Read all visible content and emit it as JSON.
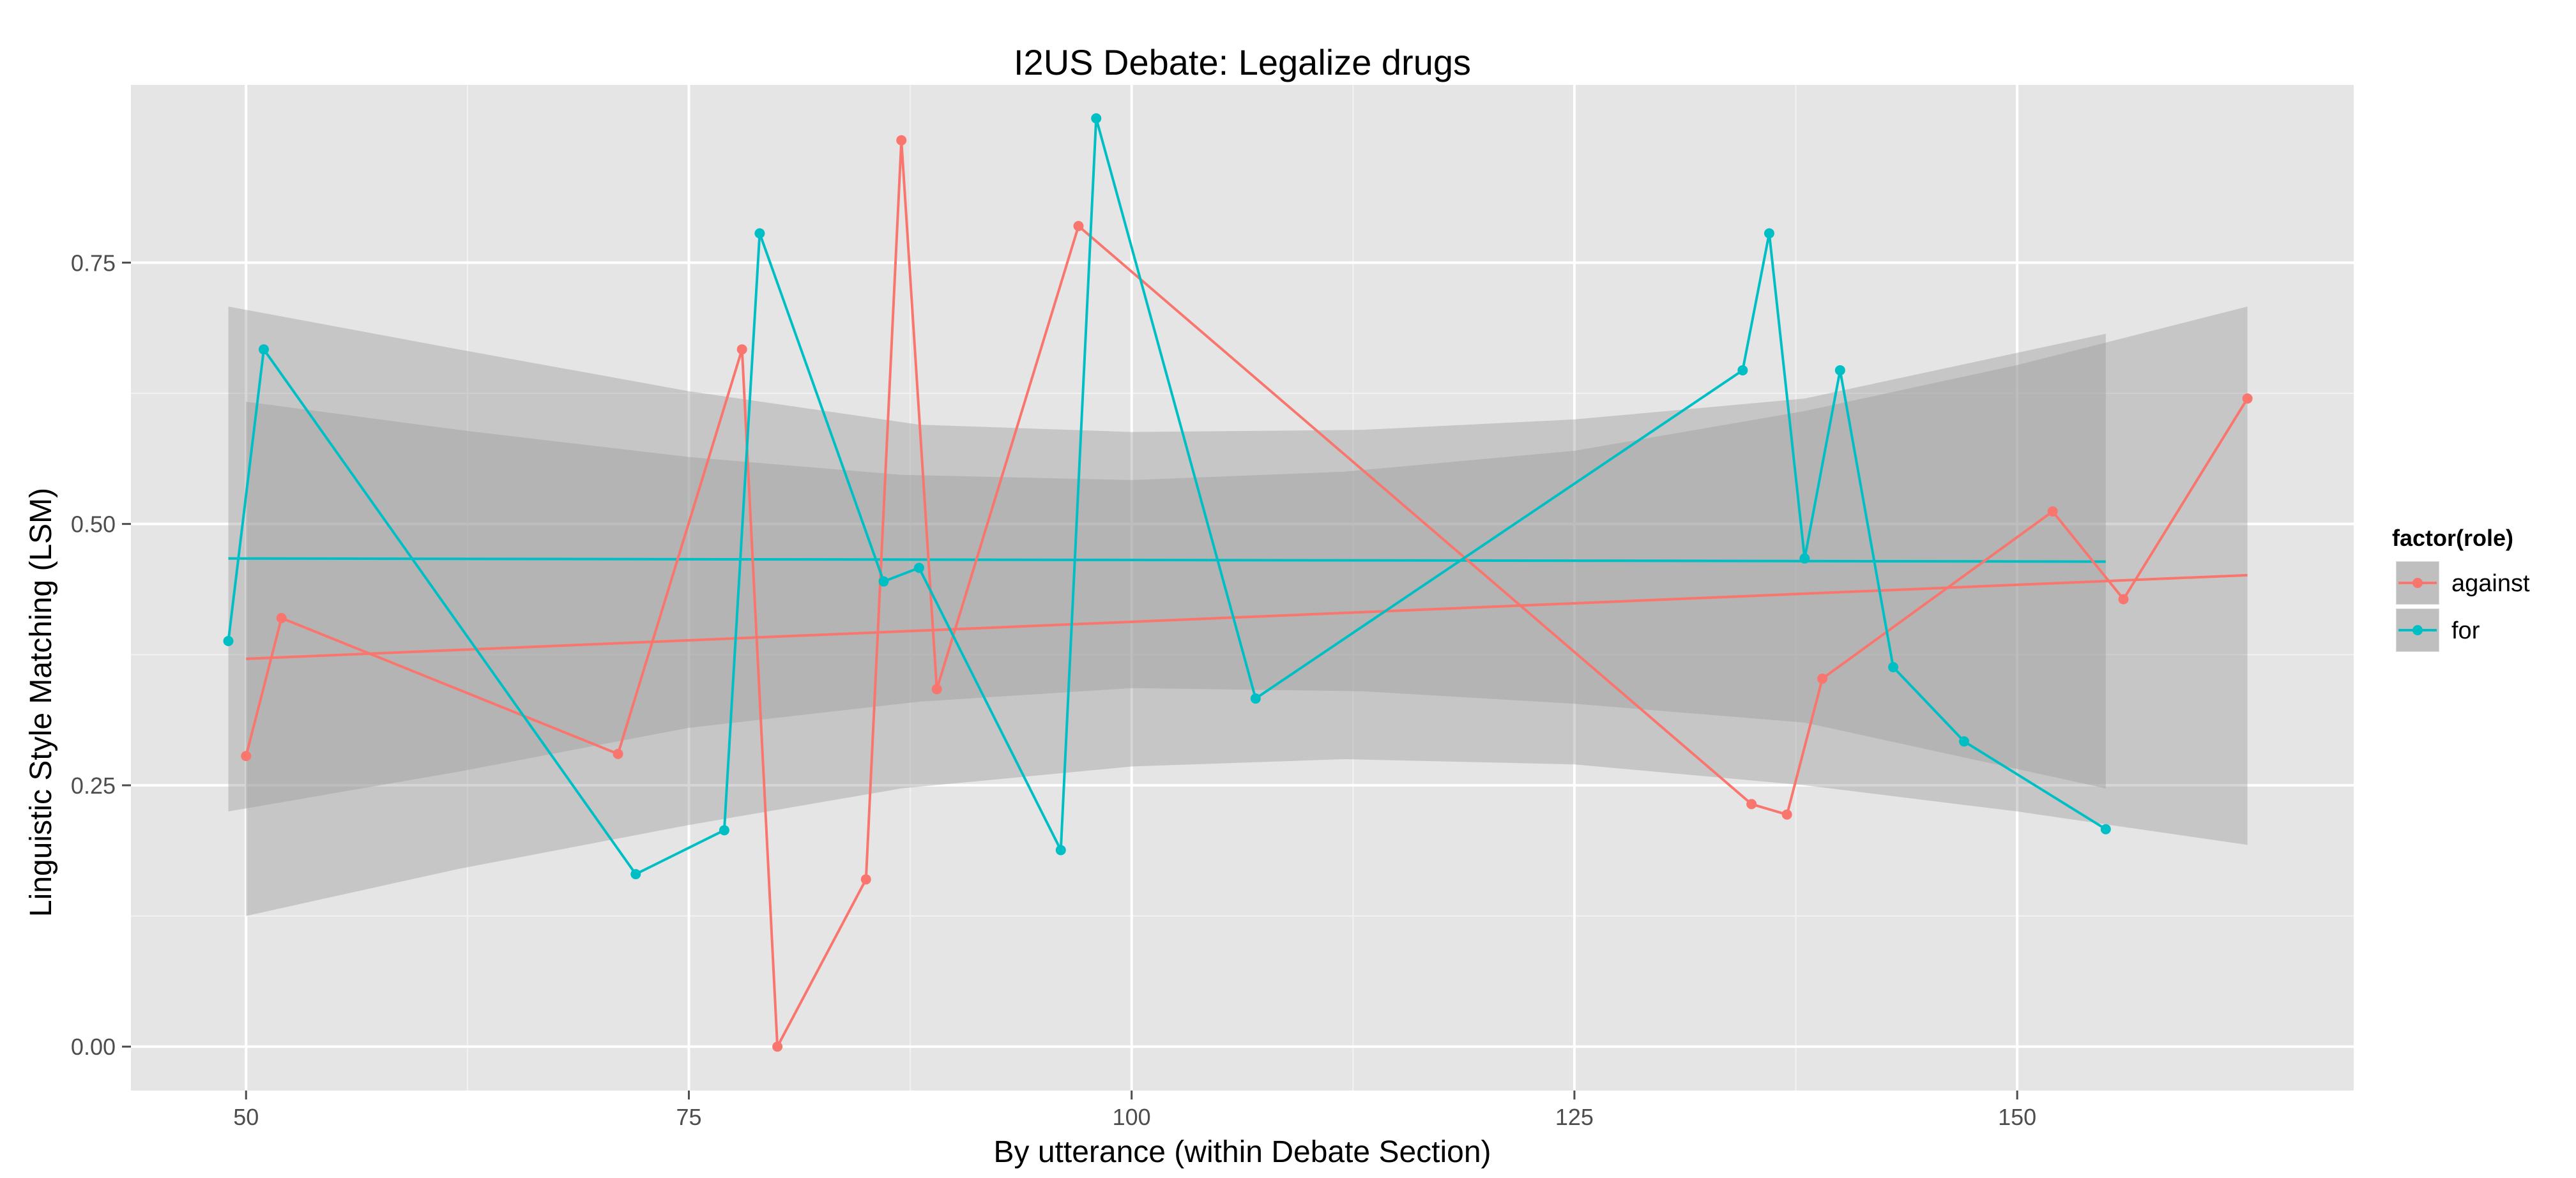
{
  "chart_data": {
    "type": "line",
    "title": "I2US Debate: Legalize drugs",
    "xlabel": "By utterance (within Debate Section)",
    "ylabel": "Linguistic Style Matching (LSM)",
    "xlim": [
      43.5,
      169
    ],
    "ylim": [
      -0.042,
      0.92
    ],
    "x_ticks": [
      50,
      75,
      100,
      125,
      150
    ],
    "x_tick_labels": [
      "50",
      "75",
      "100",
      "125",
      "150"
    ],
    "y_ticks": [
      0.0,
      0.25,
      0.5,
      0.75
    ],
    "y_tick_labels": [
      "0.00",
      "0.25",
      "0.50",
      "0.75"
    ],
    "grid": true,
    "legend": {
      "title": "factor(role)",
      "position": "right"
    },
    "series": [
      {
        "name": "against",
        "color": "#F8766D",
        "x": [
          50,
          52,
          71,
          78,
          80,
          85,
          87,
          89,
          97,
          135,
          137,
          139,
          152,
          156,
          163
        ],
        "y": [
          0.278,
          0.41,
          0.28,
          0.667,
          0.0,
          0.16,
          0.867,
          0.342,
          0.785,
          0.232,
          0.222,
          0.352,
          0.512,
          0.428,
          0.62
        ],
        "trend": {
          "x": [
            50,
            163
          ],
          "y": [
            0.371,
            0.451
          ]
        },
        "band": {
          "x": [
            50,
            62,
            75,
            87,
            100,
            112,
            125,
            138,
            150,
            163
          ],
          "upper": [
            0.617,
            0.59,
            0.564,
            0.547,
            0.542,
            0.55,
            0.57,
            0.608,
            0.652,
            0.708
          ],
          "lower": [
            0.125,
            0.17,
            0.212,
            0.247,
            0.268,
            0.275,
            0.27,
            0.25,
            0.225,
            0.193
          ]
        }
      },
      {
        "name": "for",
        "color": "#00BFC4",
        "x": [
          49,
          51,
          72,
          77,
          79,
          86,
          88,
          96,
          98,
          107,
          134.5,
          136,
          138,
          140,
          143,
          147,
          155
        ],
        "y": [
          0.388,
          0.667,
          0.165,
          0.207,
          0.778,
          0.445,
          0.458,
          0.188,
          0.888,
          0.333,
          0.647,
          0.778,
          0.467,
          0.647,
          0.363,
          0.292,
          0.208
        ],
        "trend": {
          "x": [
            49,
            155
          ],
          "y": [
            0.467,
            0.464
          ]
        },
        "band": {
          "x": [
            49,
            62,
            75,
            88,
            100,
            113,
            125,
            138,
            155
          ],
          "upper": [
            0.708,
            0.667,
            0.627,
            0.595,
            0.588,
            0.59,
            0.6,
            0.62,
            0.682
          ],
          "lower": [
            0.225,
            0.263,
            0.305,
            0.33,
            0.343,
            0.34,
            0.328,
            0.31,
            0.247
          ]
        }
      }
    ]
  }
}
